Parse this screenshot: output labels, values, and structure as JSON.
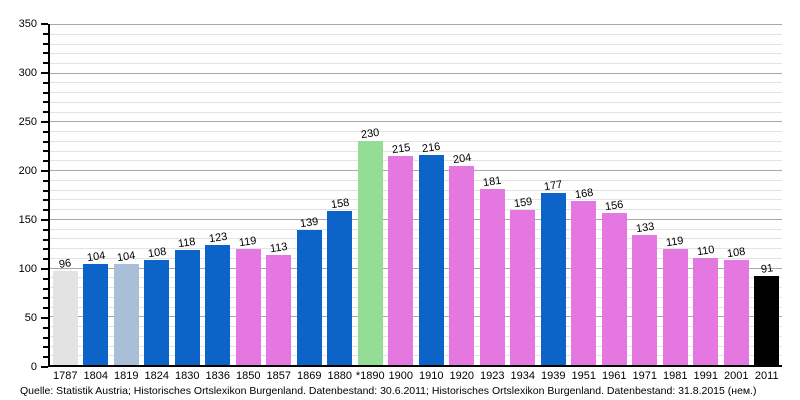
{
  "chart_data": {
    "type": "bar",
    "title": "",
    "xlabel": "",
    "ylabel": "",
    "categories": [
      "1787",
      "1804",
      "1819",
      "1824",
      "1830",
      "1836",
      "1850",
      "1857",
      "1869",
      "1880",
      "*1890",
      "1900",
      "1910",
      "1920",
      "1923",
      "1934",
      "1939",
      "1951",
      "1961",
      "1971",
      "1981",
      "1991",
      "2001",
      "2011"
    ],
    "values": [
      96,
      104,
      104,
      108,
      118,
      123,
      119,
      113,
      139,
      158,
      230,
      215,
      216,
      204,
      181,
      159,
      177,
      168,
      156,
      133,
      119,
      110,
      108,
      91
    ],
    "bar_colors": [
      "#e3e3e3",
      "#0d64c8",
      "#a9bfd8",
      "#0d64c8",
      "#0d64c8",
      "#0d64c8",
      "#e478e0",
      "#e478e0",
      "#0d64c8",
      "#0d64c8",
      "#94dd94",
      "#e478e0",
      "#0d64c8",
      "#e478e0",
      "#e478e0",
      "#e478e0",
      "#0d64c8",
      "#e478e0",
      "#e478e0",
      "#e478e0",
      "#e478e0",
      "#e478e0",
      "#e478e0",
      "#000000"
    ],
    "ylim": [
      0,
      350
    ],
    "y_major_step": 50,
    "y_minor_step": 10,
    "y_tick_labels": [
      "0",
      "50",
      "100",
      "150",
      "200",
      "250",
      "300",
      "350"
    ],
    "grid": "on",
    "legend": "none",
    "value_labels": "above-bars"
  },
  "source": {
    "text": "Quelle: Statistik Austria; Historisches Ortslexikon Burgenland. Datenbestand: 30.6.2011; Historisches Ortslexikon Burgenland. Datenbestand: 31.8.2015 (нем.)"
  },
  "colors": {
    "background": "#ffffff",
    "axis": "#000000",
    "grid_major": "#a8a8a8",
    "grid_minor": "#e3e3e3",
    "bar_blue": "#0d64c8",
    "bar_pink": "#e478e0",
    "bar_green": "#94dd94",
    "bar_gray": "#e3e3e3",
    "bar_steelblue": "#a9bfd8",
    "bar_black": "#000000"
  }
}
